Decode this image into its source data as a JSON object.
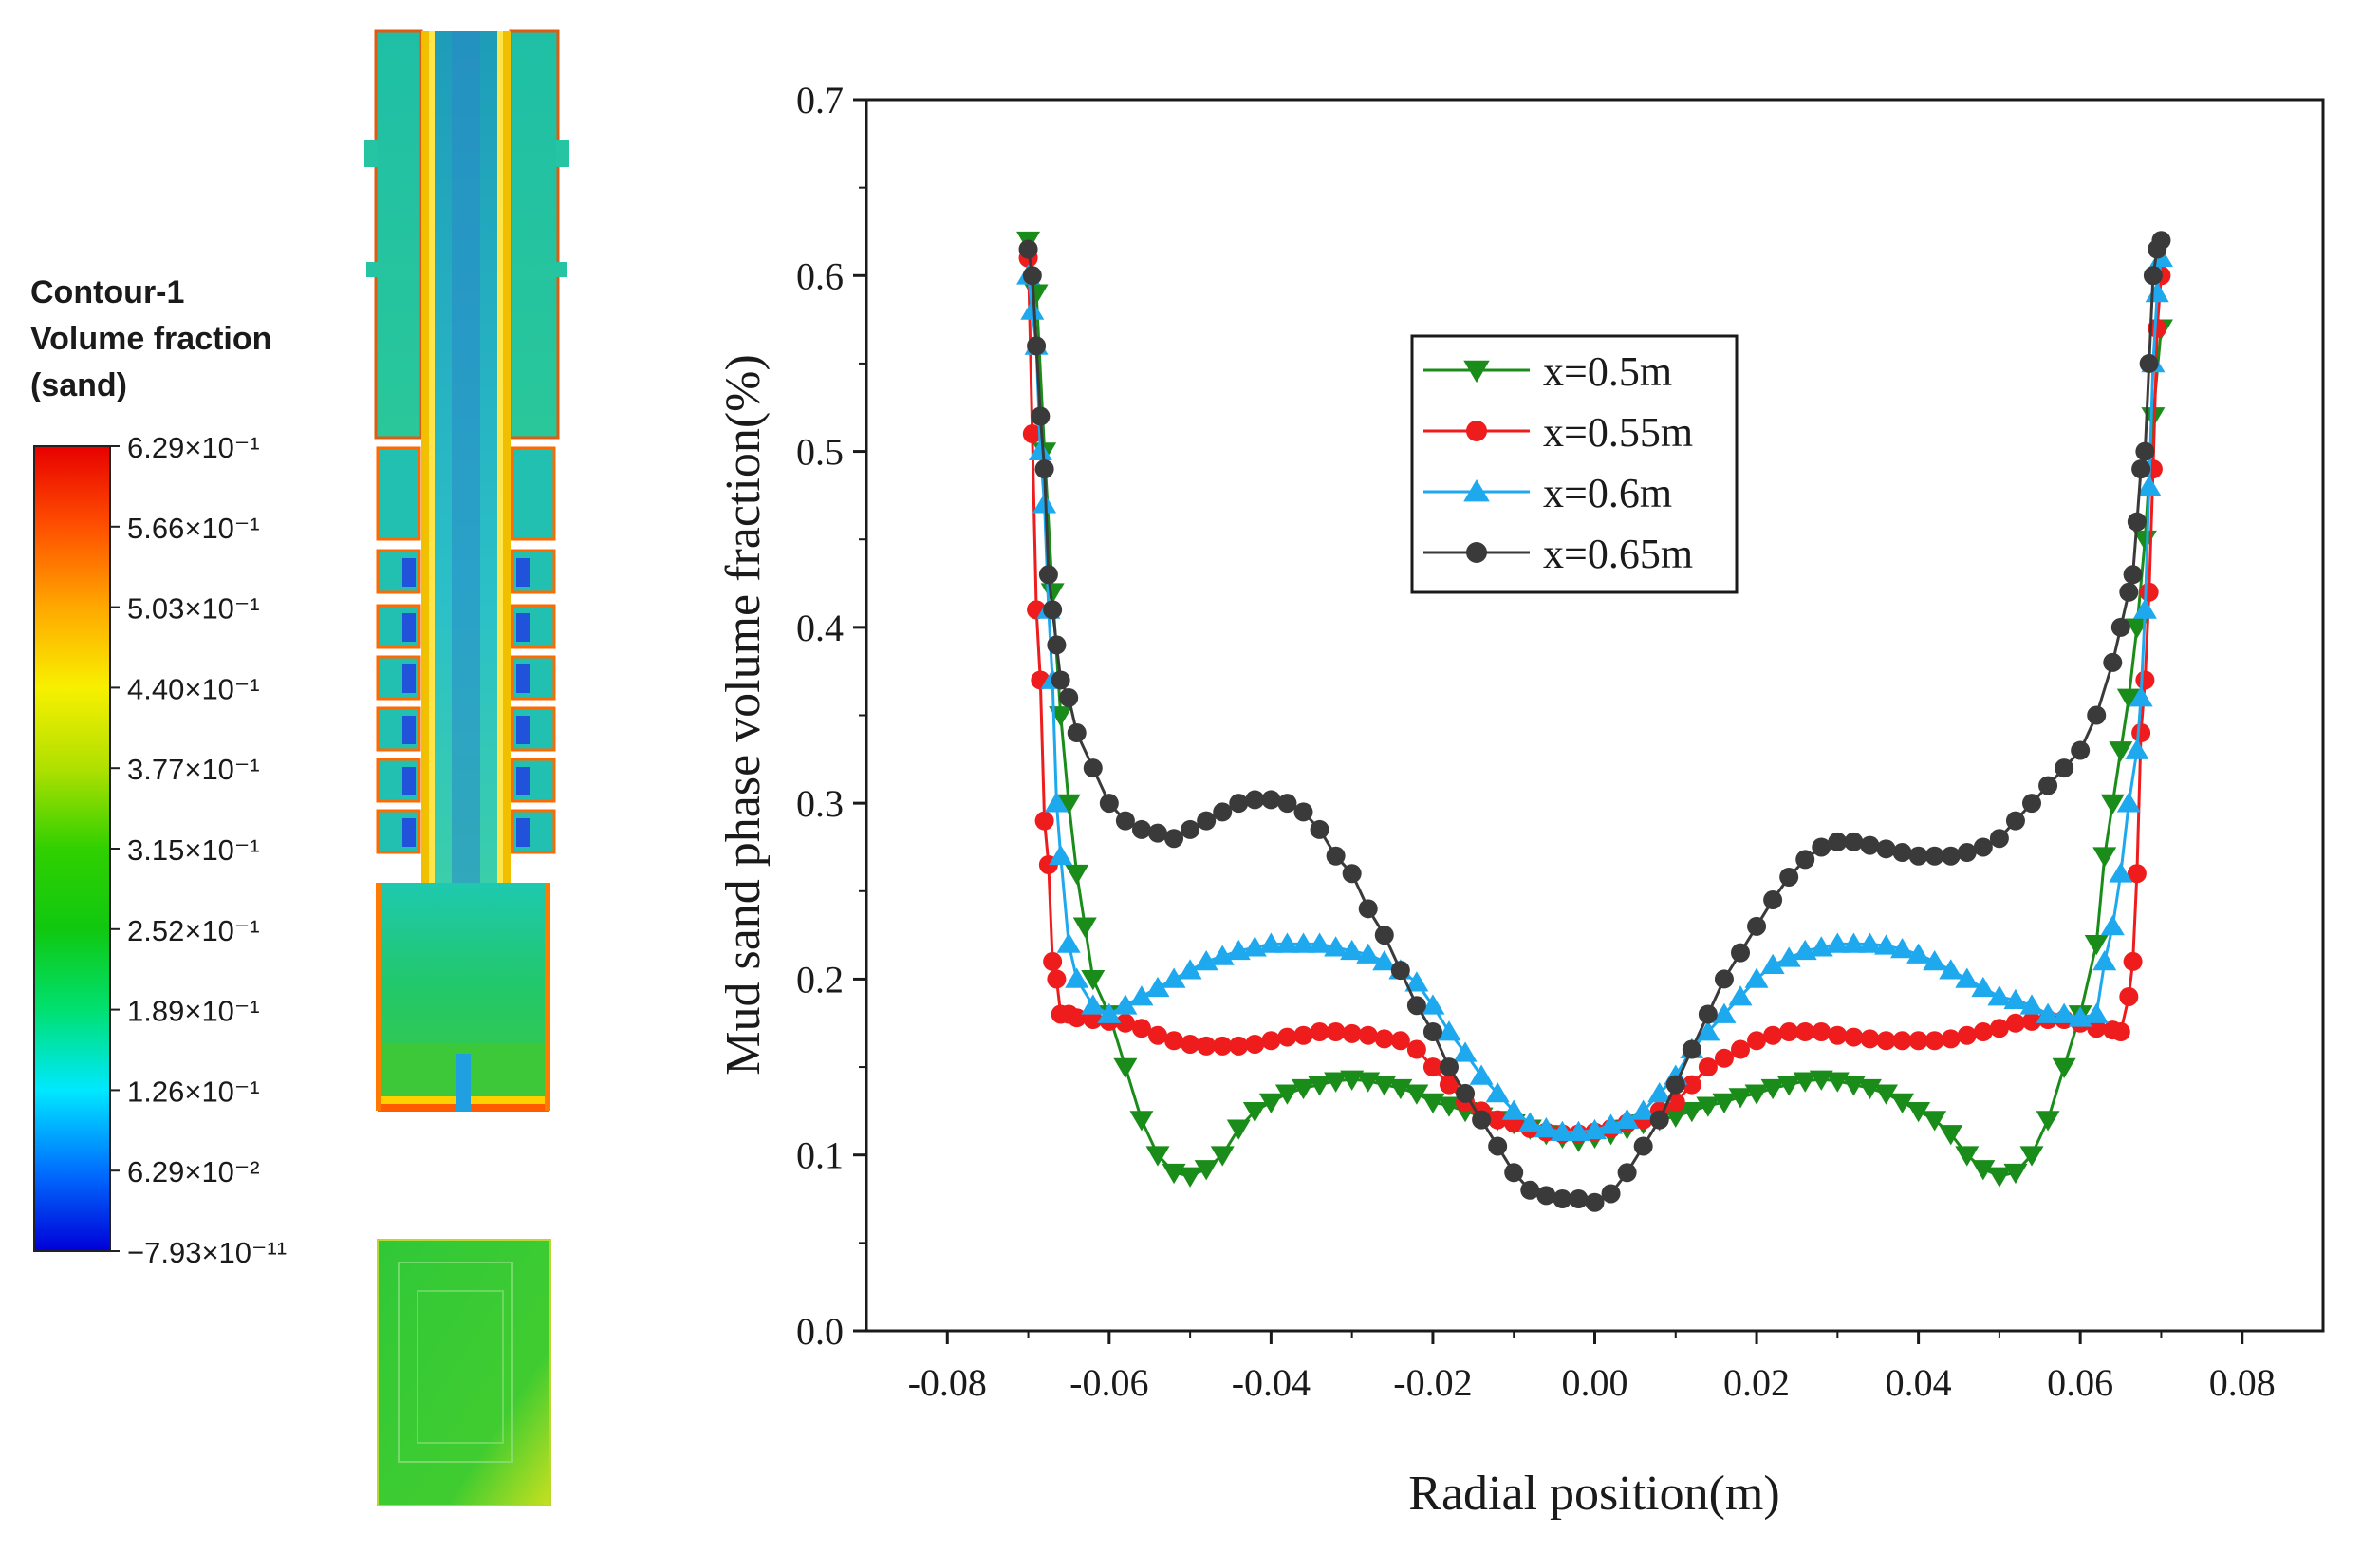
{
  "contour": {
    "title_lines": [
      "Contour-1",
      "Volume fraction",
      "(sand)"
    ],
    "colorbar_colors": [
      "#0000d8",
      "#0070ff",
      "#00e8ff",
      "#00e070",
      "#10c810",
      "#30d000",
      "#b0e000",
      "#f8f000",
      "#ffa800",
      "#ff5000",
      "#e80000"
    ],
    "tick_labels": [
      "6.29×10⁻¹",
      "5.66×10⁻¹",
      "5.03×10⁻¹",
      "4.40×10⁻¹",
      "3.77×10⁻¹",
      "3.15×10⁻¹",
      "2.52×10⁻¹",
      "1.89×10⁻¹",
      "1.26×10⁻¹",
      "6.29×10⁻²",
      "−7.93×10⁻¹¹"
    ]
  },
  "chart_data": {
    "type": "line",
    "title": "",
    "xlabel": "Radial position(m)",
    "ylabel": "Mud sand phase volume fraction(%)",
    "xlim": [
      -0.09,
      0.09
    ],
    "ylim": [
      0.0,
      0.7
    ],
    "xticks": [
      -0.08,
      -0.06,
      -0.04,
      -0.02,
      0.0,
      0.02,
      0.04,
      0.06,
      0.08
    ],
    "xtick_labels": [
      "-0.08",
      "-0.06",
      "-0.04",
      "-0.02",
      "0.00",
      "0.02",
      "0.04",
      "0.06",
      "0.08"
    ],
    "yticks": [
      0.0,
      0.1,
      0.2,
      0.3,
      0.4,
      0.5,
      0.6,
      0.7
    ],
    "ytick_labels": [
      "0.0",
      "0.1",
      "0.2",
      "0.3",
      "0.4",
      "0.5",
      "0.6",
      "0.7"
    ],
    "legend_position": "upper-center",
    "series": [
      {
        "name": "x=0.5m",
        "color": "#1a8c1a",
        "marker": "triangle-down",
        "x": [
          -0.07,
          -0.069,
          -0.068,
          -0.067,
          -0.066,
          -0.065,
          -0.064,
          -0.063,
          -0.062,
          -0.06,
          -0.058,
          -0.056,
          -0.054,
          -0.052,
          -0.05,
          -0.048,
          -0.046,
          -0.044,
          -0.042,
          -0.04,
          -0.038,
          -0.036,
          -0.034,
          -0.032,
          -0.03,
          -0.028,
          -0.026,
          -0.024,
          -0.022,
          -0.02,
          -0.018,
          -0.016,
          -0.014,
          -0.012,
          -0.01,
          -0.008,
          -0.006,
          -0.004,
          -0.002,
          0.0,
          0.002,
          0.004,
          0.006,
          0.008,
          0.01,
          0.012,
          0.014,
          0.016,
          0.018,
          0.02,
          0.022,
          0.024,
          0.026,
          0.028,
          0.03,
          0.032,
          0.034,
          0.036,
          0.038,
          0.04,
          0.042,
          0.044,
          0.046,
          0.048,
          0.05,
          0.052,
          0.054,
          0.056,
          0.058,
          0.06,
          0.062,
          0.063,
          0.064,
          0.065,
          0.066,
          0.067,
          0.068,
          0.069,
          0.07
        ],
        "y": [
          0.62,
          0.59,
          0.5,
          0.42,
          0.35,
          0.3,
          0.26,
          0.23,
          0.2,
          0.18,
          0.15,
          0.12,
          0.1,
          0.09,
          0.088,
          0.092,
          0.1,
          0.115,
          0.125,
          0.13,
          0.135,
          0.138,
          0.14,
          0.142,
          0.143,
          0.142,
          0.14,
          0.138,
          0.135,
          0.13,
          0.128,
          0.125,
          0.122,
          0.12,
          0.118,
          0.115,
          0.112,
          0.11,
          0.108,
          0.11,
          0.112,
          0.115,
          0.118,
          0.12,
          0.122,
          0.125,
          0.128,
          0.13,
          0.133,
          0.135,
          0.138,
          0.14,
          0.142,
          0.143,
          0.142,
          0.14,
          0.138,
          0.135,
          0.13,
          0.125,
          0.12,
          0.112,
          0.1,
          0.092,
          0.088,
          0.09,
          0.1,
          0.12,
          0.15,
          0.18,
          0.22,
          0.27,
          0.3,
          0.33,
          0.36,
          0.4,
          0.45,
          0.52,
          0.57
        ]
      },
      {
        "name": "x=0.55m",
        "color": "#ee1c1c",
        "marker": "circle",
        "x": [
          -0.07,
          -0.0695,
          -0.069,
          -0.0685,
          -0.068,
          -0.0675,
          -0.067,
          -0.0665,
          -0.066,
          -0.065,
          -0.064,
          -0.062,
          -0.06,
          -0.058,
          -0.056,
          -0.054,
          -0.052,
          -0.05,
          -0.048,
          -0.046,
          -0.044,
          -0.042,
          -0.04,
          -0.038,
          -0.036,
          -0.034,
          -0.032,
          -0.03,
          -0.028,
          -0.026,
          -0.024,
          -0.022,
          -0.02,
          -0.018,
          -0.016,
          -0.014,
          -0.012,
          -0.01,
          -0.008,
          -0.006,
          -0.004,
          -0.002,
          0.0,
          0.002,
          0.004,
          0.006,
          0.008,
          0.01,
          0.012,
          0.014,
          0.016,
          0.018,
          0.02,
          0.022,
          0.024,
          0.026,
          0.028,
          0.03,
          0.032,
          0.034,
          0.036,
          0.038,
          0.04,
          0.042,
          0.044,
          0.046,
          0.048,
          0.05,
          0.052,
          0.054,
          0.056,
          0.058,
          0.06,
          0.062,
          0.064,
          0.065,
          0.066,
          0.0665,
          0.067,
          0.0675,
          0.068,
          0.0685,
          0.069,
          0.0695,
          0.07
        ],
        "y": [
          0.61,
          0.51,
          0.41,
          0.37,
          0.29,
          0.265,
          0.21,
          0.2,
          0.18,
          0.18,
          0.178,
          0.177,
          0.176,
          0.175,
          0.172,
          0.168,
          0.165,
          0.163,
          0.162,
          0.162,
          0.162,
          0.163,
          0.165,
          0.167,
          0.168,
          0.17,
          0.17,
          0.169,
          0.168,
          0.166,
          0.165,
          0.16,
          0.15,
          0.14,
          0.13,
          0.125,
          0.12,
          0.118,
          0.115,
          0.113,
          0.112,
          0.112,
          0.113,
          0.115,
          0.118,
          0.12,
          0.125,
          0.13,
          0.14,
          0.15,
          0.155,
          0.16,
          0.165,
          0.168,
          0.17,
          0.17,
          0.17,
          0.168,
          0.167,
          0.166,
          0.165,
          0.165,
          0.165,
          0.165,
          0.166,
          0.168,
          0.17,
          0.172,
          0.175,
          0.176,
          0.177,
          0.177,
          0.175,
          0.172,
          0.171,
          0.17,
          0.19,
          0.21,
          0.26,
          0.34,
          0.37,
          0.42,
          0.49,
          0.57,
          0.6
        ]
      },
      {
        "name": "x=0.6m",
        "color": "#1ea9ee",
        "marker": "triangle-up",
        "x": [
          -0.07,
          -0.0695,
          -0.069,
          -0.0685,
          -0.068,
          -0.0675,
          -0.067,
          -0.0665,
          -0.066,
          -0.065,
          -0.064,
          -0.062,
          -0.06,
          -0.058,
          -0.056,
          -0.054,
          -0.052,
          -0.05,
          -0.048,
          -0.046,
          -0.044,
          -0.042,
          -0.04,
          -0.038,
          -0.036,
          -0.034,
          -0.032,
          -0.03,
          -0.028,
          -0.026,
          -0.024,
          -0.022,
          -0.02,
          -0.018,
          -0.016,
          -0.014,
          -0.012,
          -0.01,
          -0.008,
          -0.006,
          -0.004,
          -0.002,
          0.0,
          0.002,
          0.004,
          0.006,
          0.008,
          0.01,
          0.012,
          0.014,
          0.016,
          0.018,
          0.02,
          0.022,
          0.024,
          0.026,
          0.028,
          0.03,
          0.032,
          0.034,
          0.036,
          0.038,
          0.04,
          0.042,
          0.044,
          0.046,
          0.048,
          0.05,
          0.052,
          0.054,
          0.056,
          0.058,
          0.06,
          0.062,
          0.063,
          0.064,
          0.065,
          0.066,
          0.067,
          0.0675,
          0.068,
          0.0685,
          0.069,
          0.0695,
          0.07
        ],
        "y": [
          0.6,
          0.58,
          0.56,
          0.5,
          0.47,
          0.41,
          0.37,
          0.3,
          0.27,
          0.22,
          0.2,
          0.185,
          0.18,
          0.185,
          0.19,
          0.195,
          0.2,
          0.205,
          0.21,
          0.213,
          0.216,
          0.218,
          0.22,
          0.22,
          0.22,
          0.22,
          0.218,
          0.216,
          0.214,
          0.21,
          0.205,
          0.198,
          0.185,
          0.17,
          0.158,
          0.145,
          0.135,
          0.125,
          0.118,
          0.115,
          0.113,
          0.113,
          0.114,
          0.117,
          0.12,
          0.125,
          0.135,
          0.145,
          0.16,
          0.17,
          0.18,
          0.19,
          0.2,
          0.208,
          0.212,
          0.216,
          0.218,
          0.22,
          0.22,
          0.22,
          0.219,
          0.217,
          0.214,
          0.21,
          0.205,
          0.2,
          0.195,
          0.19,
          0.188,
          0.185,
          0.18,
          0.18,
          0.178,
          0.18,
          0.21,
          0.23,
          0.26,
          0.3,
          0.33,
          0.36,
          0.41,
          0.48,
          0.55,
          0.59,
          0.61
        ]
      },
      {
        "name": "x=0.65m",
        "color": "#3a3a3a",
        "marker": "circle",
        "x": [
          -0.07,
          -0.0695,
          -0.069,
          -0.0685,
          -0.068,
          -0.0675,
          -0.067,
          -0.0665,
          -0.066,
          -0.065,
          -0.064,
          -0.062,
          -0.06,
          -0.058,
          -0.056,
          -0.054,
          -0.052,
          -0.05,
          -0.048,
          -0.046,
          -0.044,
          -0.042,
          -0.04,
          -0.038,
          -0.036,
          -0.034,
          -0.032,
          -0.03,
          -0.028,
          -0.026,
          -0.024,
          -0.022,
          -0.02,
          -0.018,
          -0.016,
          -0.014,
          -0.012,
          -0.01,
          -0.008,
          -0.006,
          -0.004,
          -0.002,
          0.0,
          0.002,
          0.004,
          0.006,
          0.008,
          0.01,
          0.012,
          0.014,
          0.016,
          0.018,
          0.02,
          0.022,
          0.024,
          0.026,
          0.028,
          0.03,
          0.032,
          0.034,
          0.036,
          0.038,
          0.04,
          0.042,
          0.044,
          0.046,
          0.048,
          0.05,
          0.052,
          0.054,
          0.056,
          0.058,
          0.06,
          0.062,
          0.064,
          0.065,
          0.066,
          0.0665,
          0.067,
          0.0675,
          0.068,
          0.0685,
          0.069,
          0.0695,
          0.07
        ],
        "y": [
          0.615,
          0.6,
          0.56,
          0.52,
          0.49,
          0.43,
          0.41,
          0.39,
          0.37,
          0.36,
          0.34,
          0.32,
          0.3,
          0.29,
          0.285,
          0.283,
          0.28,
          0.285,
          0.29,
          0.295,
          0.3,
          0.302,
          0.302,
          0.3,
          0.295,
          0.285,
          0.27,
          0.26,
          0.24,
          0.225,
          0.205,
          0.185,
          0.17,
          0.15,
          0.135,
          0.12,
          0.105,
          0.09,
          0.08,
          0.077,
          0.075,
          0.075,
          0.073,
          0.078,
          0.09,
          0.105,
          0.12,
          0.14,
          0.16,
          0.18,
          0.2,
          0.215,
          0.23,
          0.245,
          0.258,
          0.268,
          0.275,
          0.278,
          0.278,
          0.276,
          0.274,
          0.272,
          0.27,
          0.27,
          0.27,
          0.272,
          0.275,
          0.28,
          0.29,
          0.3,
          0.31,
          0.32,
          0.33,
          0.35,
          0.38,
          0.4,
          0.42,
          0.43,
          0.46,
          0.49,
          0.5,
          0.55,
          0.6,
          0.615,
          0.62
        ]
      }
    ]
  }
}
